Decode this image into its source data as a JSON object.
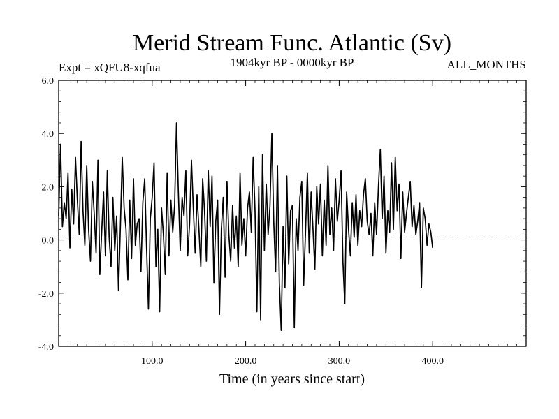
{
  "chart_data": {
    "type": "line",
    "title": "Merid Stream Func. Atlantic (Sv)",
    "subtitle_left": "Expt = xQFU8-xqfua",
    "subtitle_center": "1904kyr BP - 0000kyr BP",
    "subtitle_right": "ALL_MONTHS",
    "xlabel": "Time (in years since start)",
    "ylabel": "",
    "xlim": [
      0,
      500
    ],
    "ylim": [
      -4.0,
      6.0
    ],
    "xticks": [
      100,
      200,
      300,
      400
    ],
    "xtick_labels": [
      "100.0",
      "200.0",
      "300.0",
      "400.0"
    ],
    "yticks": [
      -4,
      -2,
      0,
      2,
      4,
      6
    ],
    "ytick_labels": [
      "-4.0",
      "-2.0",
      "0.0",
      "2.0",
      "4.0",
      "6.0"
    ],
    "zero_line": true,
    "series": [
      {
        "name": "Merid Stream Func. Atlantic",
        "x_start": 0,
        "x_step": 2,
        "values": [
          0.9,
          3.6,
          0.5,
          1.4,
          0.8,
          2.5,
          -0.3,
          1.9,
          0.6,
          3.1,
          1.5,
          0.2,
          3.7,
          1.1,
          -0.2,
          2.8,
          0.4,
          -0.8,
          2.2,
          1.0,
          -0.5,
          3.0,
          -1.3,
          0.3,
          1.8,
          -0.6,
          2.6,
          0.1,
          -1.0,
          1.6,
          -0.4,
          0.9,
          -1.9,
          0.5,
          3.1,
          1.2,
          0.4,
          -1.5,
          1.5,
          -0.7,
          2.3,
          -0.2,
          0.6,
          0.8,
          -1.2,
          1.4,
          2.3,
          -0.3,
          -2.6,
          0.8,
          1.6,
          2.9,
          -1.0,
          0.4,
          -2.7,
          1.2,
          0.2,
          -1.3,
          2.5,
          -0.6,
          1.5,
          0.3,
          1.3,
          4.4,
          1.8,
          -0.4,
          1.6,
          0.9,
          2.6,
          -0.6,
          0.6,
          3.0,
          1.2,
          -0.5,
          1.7,
          0.4,
          -1.0,
          2.3,
          1.1,
          -0.8,
          2.6,
          0.5,
          2.4,
          -1.6,
          0.7,
          1.5,
          -2.8,
          0.4,
          1.6,
          -1.4,
          2.2,
          0.2,
          -0.8,
          1.3,
          -0.3,
          0.9,
          -1.0,
          2.5,
          -0.2,
          0.8,
          -0.6,
          1.2,
          1.8,
          0.3,
          3.1,
          1.1,
          -2.7,
          2.0,
          -3.0,
          3.2,
          -0.4,
          2.1,
          0.2,
          1.3,
          4.0,
          0.7,
          -1.2,
          2.8,
          -1.6,
          -3.4,
          0.5,
          -1.8,
          2.4,
          -0.9,
          1.1,
          1.3,
          -3.3,
          0.8,
          -0.4,
          1.6,
          2.2,
          -1.7,
          0.3,
          2.5,
          -0.5,
          1.8,
          0.4,
          -1.1,
          2.0,
          0.6,
          2.1,
          -0.6,
          1.5,
          -0.2,
          2.8,
          0.2,
          1.2,
          -0.4,
          2.3,
          0.7,
          1.5,
          2.6,
          -0.8,
          -2.4,
          1.8,
          0.4,
          -0.6,
          1.4,
          0.1,
          1.7,
          -0.2,
          1.1,
          0.5,
          1.7,
          2.3,
          0.7,
          0.2,
          1.0,
          -0.6,
          1.4,
          0.2,
          2.0,
          3.4,
          0.8,
          2.4,
          -0.5,
          1.1,
          0.3,
          2.9,
          0.4,
          3.1,
          1.1,
          2.1,
          -0.7,
          1.8,
          0.3,
          1.0,
          1.6,
          2.2,
          0.5,
          1.3,
          0.2,
          0.7,
          1.4,
          -1.8,
          1.2,
          0.8,
          -0.2,
          0.6,
          0.3,
          -0.3
        ]
      }
    ]
  }
}
